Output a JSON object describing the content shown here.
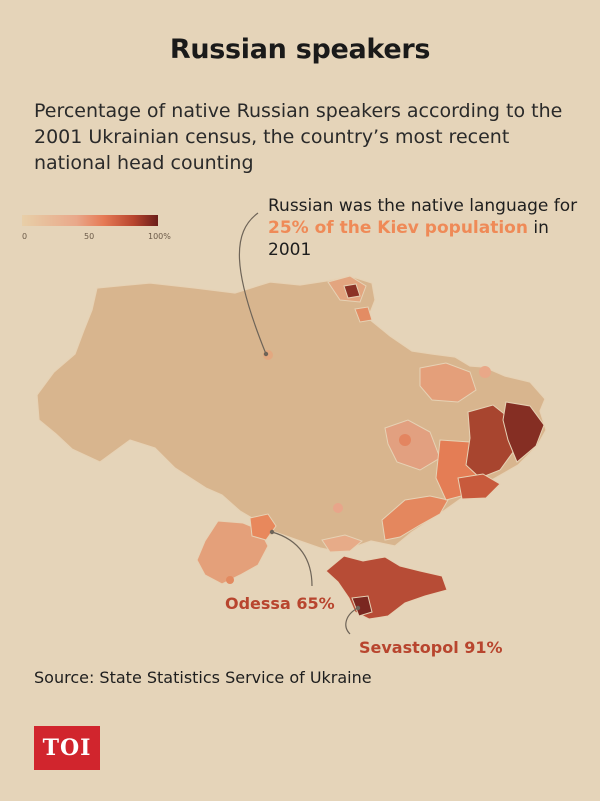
{
  "header": {
    "title": "Russian speakers",
    "subtitle": "Percentage of native Russian speakers according to the 2001 Ukrainian census, the country’s most recent national head counting"
  },
  "legend": {
    "ticks": [
      "0",
      "50",
      "100%"
    ],
    "colors": [
      "#e8cfa8",
      "#e9a88a",
      "#e67a55",
      "#b8452e",
      "#6b1e1a"
    ]
  },
  "annotations": {
    "kiev": {
      "prefix": "Russian was the native language for ",
      "highlight": "25% of the Kiev population",
      "suffix": " in 2001"
    },
    "odessa": "Odessa 65%",
    "sevastopol": "Sevastopol 91%"
  },
  "source": "Source: State Statistics Service of Ukraine",
  "logo": "TOI",
  "colors": {
    "background": "#e5d4b9",
    "base_region": "#d8b58e",
    "highlight_text": "#ef8a57",
    "city_label": "#b8452e",
    "logo_bg": "#d1252d"
  }
}
